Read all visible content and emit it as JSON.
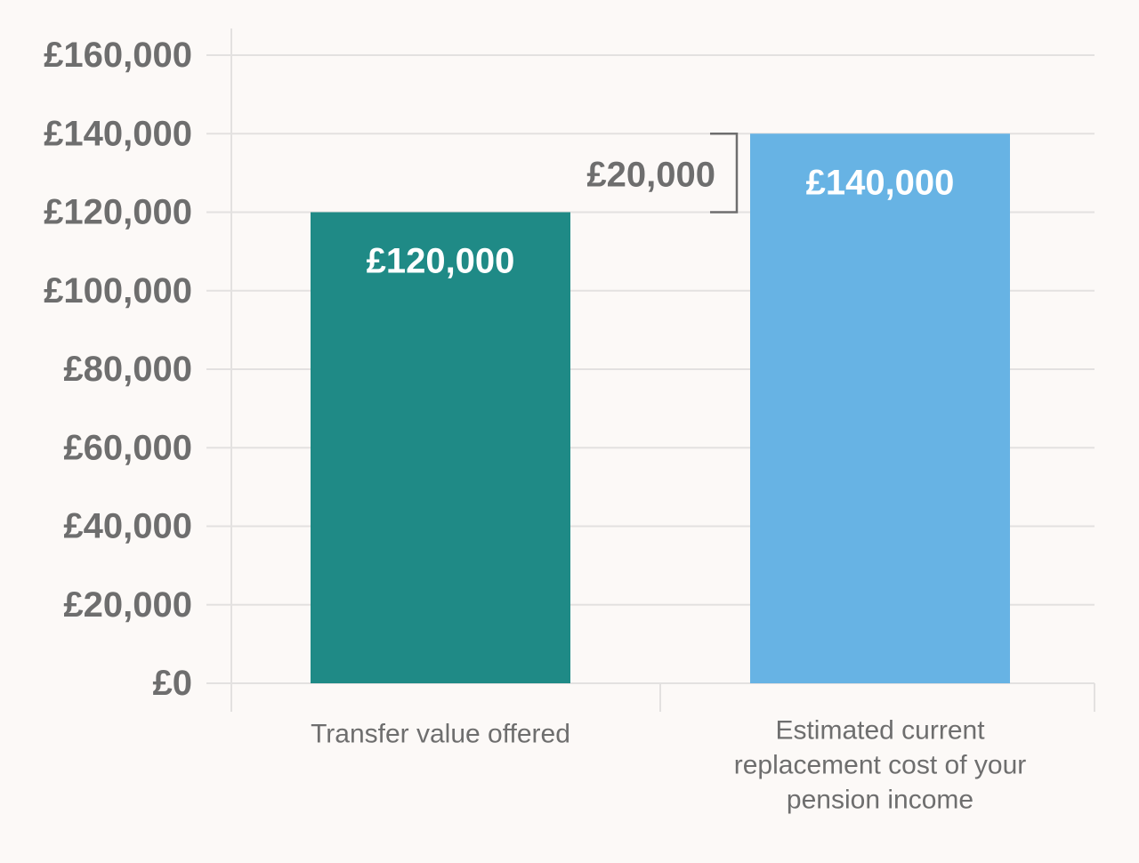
{
  "chart_data": {
    "type": "bar",
    "categories": [
      [
        "Transfer value offered"
      ],
      [
        "Estimated current",
        "replacement cost of your",
        "pension income"
      ]
    ],
    "values": [
      120000,
      140000
    ],
    "data_labels": [
      "£120,000",
      "£140,000"
    ],
    "ylim": [
      0,
      160000
    ],
    "y_ticks": [
      0,
      20000,
      40000,
      60000,
      80000,
      100000,
      120000,
      140000,
      160000
    ],
    "y_tick_labels": [
      "£0",
      "£20,000",
      "£40,000",
      "£60,000",
      "£80,000",
      "£100,000",
      "£120,000",
      "£140,000",
      "£160,000"
    ],
    "grid": true,
    "legend": "none",
    "title": "",
    "xlabel": "",
    "ylabel": "",
    "annotation": {
      "label": "£20,000",
      "from_value": 120000,
      "to_value": 140000
    },
    "colors": {
      "bars": [
        "#1f8a86",
        "#67b3e4"
      ],
      "grid": "#e3e1e0",
      "axis_text": "#6e6e6e",
      "bar_text": "#ffffff",
      "background": "#fcf9f7"
    }
  }
}
